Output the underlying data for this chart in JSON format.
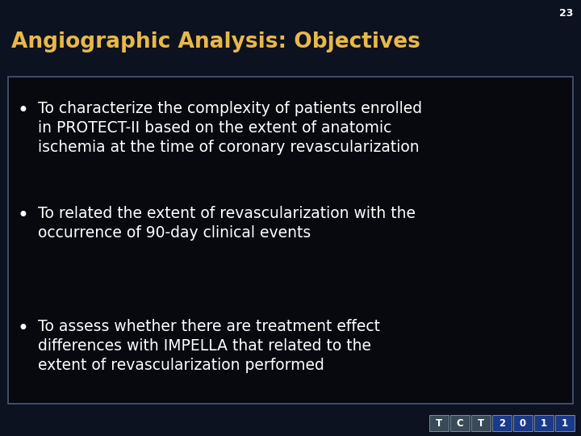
{
  "title": "Angiographic Analysis: Objectives",
  "title_color": "#E8B84B",
  "slide_number": "23",
  "bg_color": "#0D1220",
  "box_bg": "#07090F",
  "box_border_color": "#4A5A7A",
  "text_color": "#FFFFFF",
  "bullet_points": [
    "To characterize the complexity of patients enrolled\nin PROTECT-II based on the extent of anatomic\nischemia at the time of coronary revascularization",
    "To related the extent of revascularization with the\noccurrence of 90-day clinical events",
    "To assess whether there are treatment effect\ndifferences with IMPELLA that related to the\nextent of revascularization performed"
  ],
  "footer_labels": [
    "T",
    "C",
    "T",
    "2",
    "0",
    "1",
    "1"
  ],
  "footer_bg_colors": [
    "#3A4A58",
    "#3A4A58",
    "#3A4A58",
    "#1A3A8A",
    "#1A3A8A",
    "#1A3A8A",
    "#1A3A8A"
  ]
}
